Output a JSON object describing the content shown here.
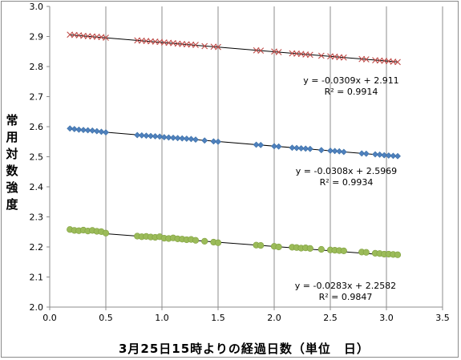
{
  "chart_data": {
    "type": "scatter",
    "xlabel": "3月25日15時よりの経過日数（単位　日）",
    "ylabel": "常用対数強度",
    "xlim": [
      0.0,
      3.5
    ],
    "ylim": [
      2.0,
      3.0
    ],
    "x_ticks": [
      "0.0",
      "0.5",
      "1.0",
      "1.5",
      "2.0",
      "2.5",
      "3.0",
      "3.5"
    ],
    "y_ticks": [
      "2.0",
      "2.1",
      "2.2",
      "2.3",
      "2.4",
      "2.5",
      "2.6",
      "2.7",
      "2.8",
      "2.9",
      "3.0"
    ],
    "grid": "vertical",
    "series": [
      {
        "marker": "x",
        "color": "#c0504d",
        "x": [
          0.18,
          0.22,
          0.26,
          0.3,
          0.34,
          0.38,
          0.42,
          0.46,
          0.5,
          0.78,
          0.82,
          0.86,
          0.9,
          0.94,
          0.98,
          1.02,
          1.06,
          1.1,
          1.14,
          1.18,
          1.22,
          1.26,
          1.3,
          1.38,
          1.46,
          1.5,
          1.84,
          1.88,
          2.0,
          2.04,
          2.16,
          2.2,
          2.24,
          2.28,
          2.32,
          2.42,
          2.5,
          2.54,
          2.58,
          2.62,
          2.78,
          2.82,
          2.9,
          2.94,
          2.98,
          3.02,
          3.06,
          3.1
        ],
        "y": [
          2.906,
          2.905,
          2.904,
          2.902,
          2.901,
          2.9,
          2.899,
          2.898,
          2.896,
          2.887,
          2.886,
          2.885,
          2.884,
          2.883,
          2.882,
          2.88,
          2.879,
          2.878,
          2.876,
          2.875,
          2.874,
          2.873,
          2.872,
          2.868,
          2.866,
          2.865,
          2.854,
          2.853,
          2.85,
          2.848,
          2.844,
          2.843,
          2.842,
          2.84,
          2.839,
          2.836,
          2.834,
          2.833,
          2.831,
          2.83,
          2.825,
          2.824,
          2.821,
          2.82,
          2.819,
          2.818,
          2.816,
          2.815
        ],
        "trendline": {
          "slope": -0.0309,
          "intercept": 2.911,
          "equation": "y = -0.0309x + 2.911",
          "r2": "R² = 0.9914"
        }
      },
      {
        "marker": "diamond",
        "color": "#4f81bd",
        "x": [
          0.18,
          0.22,
          0.26,
          0.3,
          0.34,
          0.38,
          0.42,
          0.46,
          0.5,
          0.78,
          0.82,
          0.86,
          0.9,
          0.94,
          0.98,
          1.02,
          1.06,
          1.1,
          1.14,
          1.18,
          1.22,
          1.26,
          1.3,
          1.38,
          1.46,
          1.5,
          1.84,
          1.88,
          2.0,
          2.04,
          2.16,
          2.2,
          2.24,
          2.28,
          2.32,
          2.42,
          2.5,
          2.54,
          2.58,
          2.62,
          2.78,
          2.82,
          2.9,
          2.94,
          2.98,
          3.02,
          3.06,
          3.1
        ],
        "y": [
          2.594,
          2.592,
          2.59,
          2.589,
          2.588,
          2.587,
          2.585,
          2.583,
          2.581,
          2.572,
          2.571,
          2.57,
          2.569,
          2.568,
          2.567,
          2.565,
          2.564,
          2.563,
          2.562,
          2.561,
          2.56,
          2.559,
          2.557,
          2.554,
          2.551,
          2.55,
          2.54,
          2.539,
          2.535,
          2.534,
          2.53,
          2.529,
          2.528,
          2.527,
          2.526,
          2.522,
          2.52,
          2.519,
          2.518,
          2.516,
          2.511,
          2.51,
          2.508,
          2.507,
          2.505,
          2.504,
          2.503,
          2.502
        ],
        "trendline": {
          "slope": -0.0308,
          "intercept": 2.5969,
          "equation": "y = -0.0308x + 2.5969",
          "r2": "R² = 0.9934"
        }
      },
      {
        "marker": "circle",
        "color": "#9bbb59",
        "x": [
          0.18,
          0.22,
          0.26,
          0.3,
          0.34,
          0.38,
          0.42,
          0.46,
          0.5,
          0.78,
          0.82,
          0.86,
          0.9,
          0.94,
          0.98,
          1.02,
          1.06,
          1.1,
          1.14,
          1.18,
          1.22,
          1.26,
          1.3,
          1.38,
          1.46,
          1.5,
          1.84,
          1.88,
          2.0,
          2.04,
          2.16,
          2.2,
          2.24,
          2.28,
          2.32,
          2.42,
          2.5,
          2.54,
          2.58,
          2.62,
          2.78,
          2.82,
          2.9,
          2.94,
          2.98,
          3.02,
          3.06,
          3.1
        ],
        "y": [
          2.258,
          2.255,
          2.254,
          2.256,
          2.253,
          2.255,
          2.252,
          2.251,
          2.246,
          2.236,
          2.234,
          2.235,
          2.233,
          2.232,
          2.234,
          2.229,
          2.228,
          2.23,
          2.227,
          2.226,
          2.224,
          2.225,
          2.222,
          2.219,
          2.216,
          2.214,
          2.206,
          2.205,
          2.202,
          2.2,
          2.199,
          2.198,
          2.196,
          2.197,
          2.195,
          2.192,
          2.19,
          2.189,
          2.188,
          2.187,
          2.183,
          2.182,
          2.179,
          2.178,
          2.176,
          2.176,
          2.175,
          2.174
        ],
        "trendline": {
          "slope": -0.0283,
          "intercept": 2.2582,
          "equation": "y = -0.0283x + 2.2582",
          "r2": "R² = 0.9847"
        }
      }
    ]
  }
}
